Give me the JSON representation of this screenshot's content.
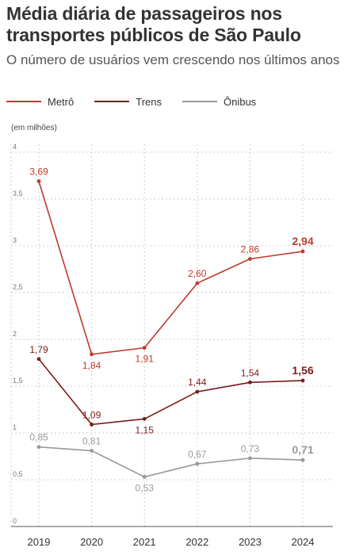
{
  "header": {
    "title": "Média diária de passageiros nos transportes públicos de São Paulo",
    "subtitle": "O número de usuários vem crescendo nos últimos anos"
  },
  "legend": [
    {
      "name": "Metrô",
      "color": "#c0392b"
    },
    {
      "name": "Trens",
      "color": "#7b1a1a"
    },
    {
      "name": "Ônibus",
      "color": "#999999"
    }
  ],
  "chart_data": {
    "type": "line",
    "ylabel": "(em milhões)",
    "ylim": [
      0,
      4
    ],
    "y_ticks": [
      "0",
      "0,5",
      "1",
      "1,5",
      "2",
      "2,5",
      "3",
      "3,5",
      "4"
    ],
    "x": [
      "2019",
      "2020",
      "2021",
      "2022",
      "2023",
      "2024"
    ],
    "grid": true,
    "series": [
      {
        "name": "Metrô",
        "color": "#c0392b",
        "values": [
          3.69,
          1.84,
          1.91,
          2.6,
          2.86,
          2.94
        ],
        "labels": [
          "3,69",
          "1,84",
          "1,91",
          "2,60",
          "2,86",
          "2,94"
        ]
      },
      {
        "name": "Trens",
        "color": "#7b1a1a",
        "values": [
          1.79,
          1.09,
          1.15,
          1.44,
          1.54,
          1.56
        ],
        "labels": [
          "1,79",
          "1,09",
          "1,15",
          "1,44",
          "1,54",
          "1,56"
        ]
      },
      {
        "name": "Ônibus",
        "color": "#999999",
        "values": [
          0.85,
          0.81,
          0.53,
          0.67,
          0.73,
          0.71
        ],
        "labels": [
          "0,85",
          "0,81",
          "0,53",
          "0,67",
          "0,73",
          "0,71"
        ]
      }
    ]
  }
}
